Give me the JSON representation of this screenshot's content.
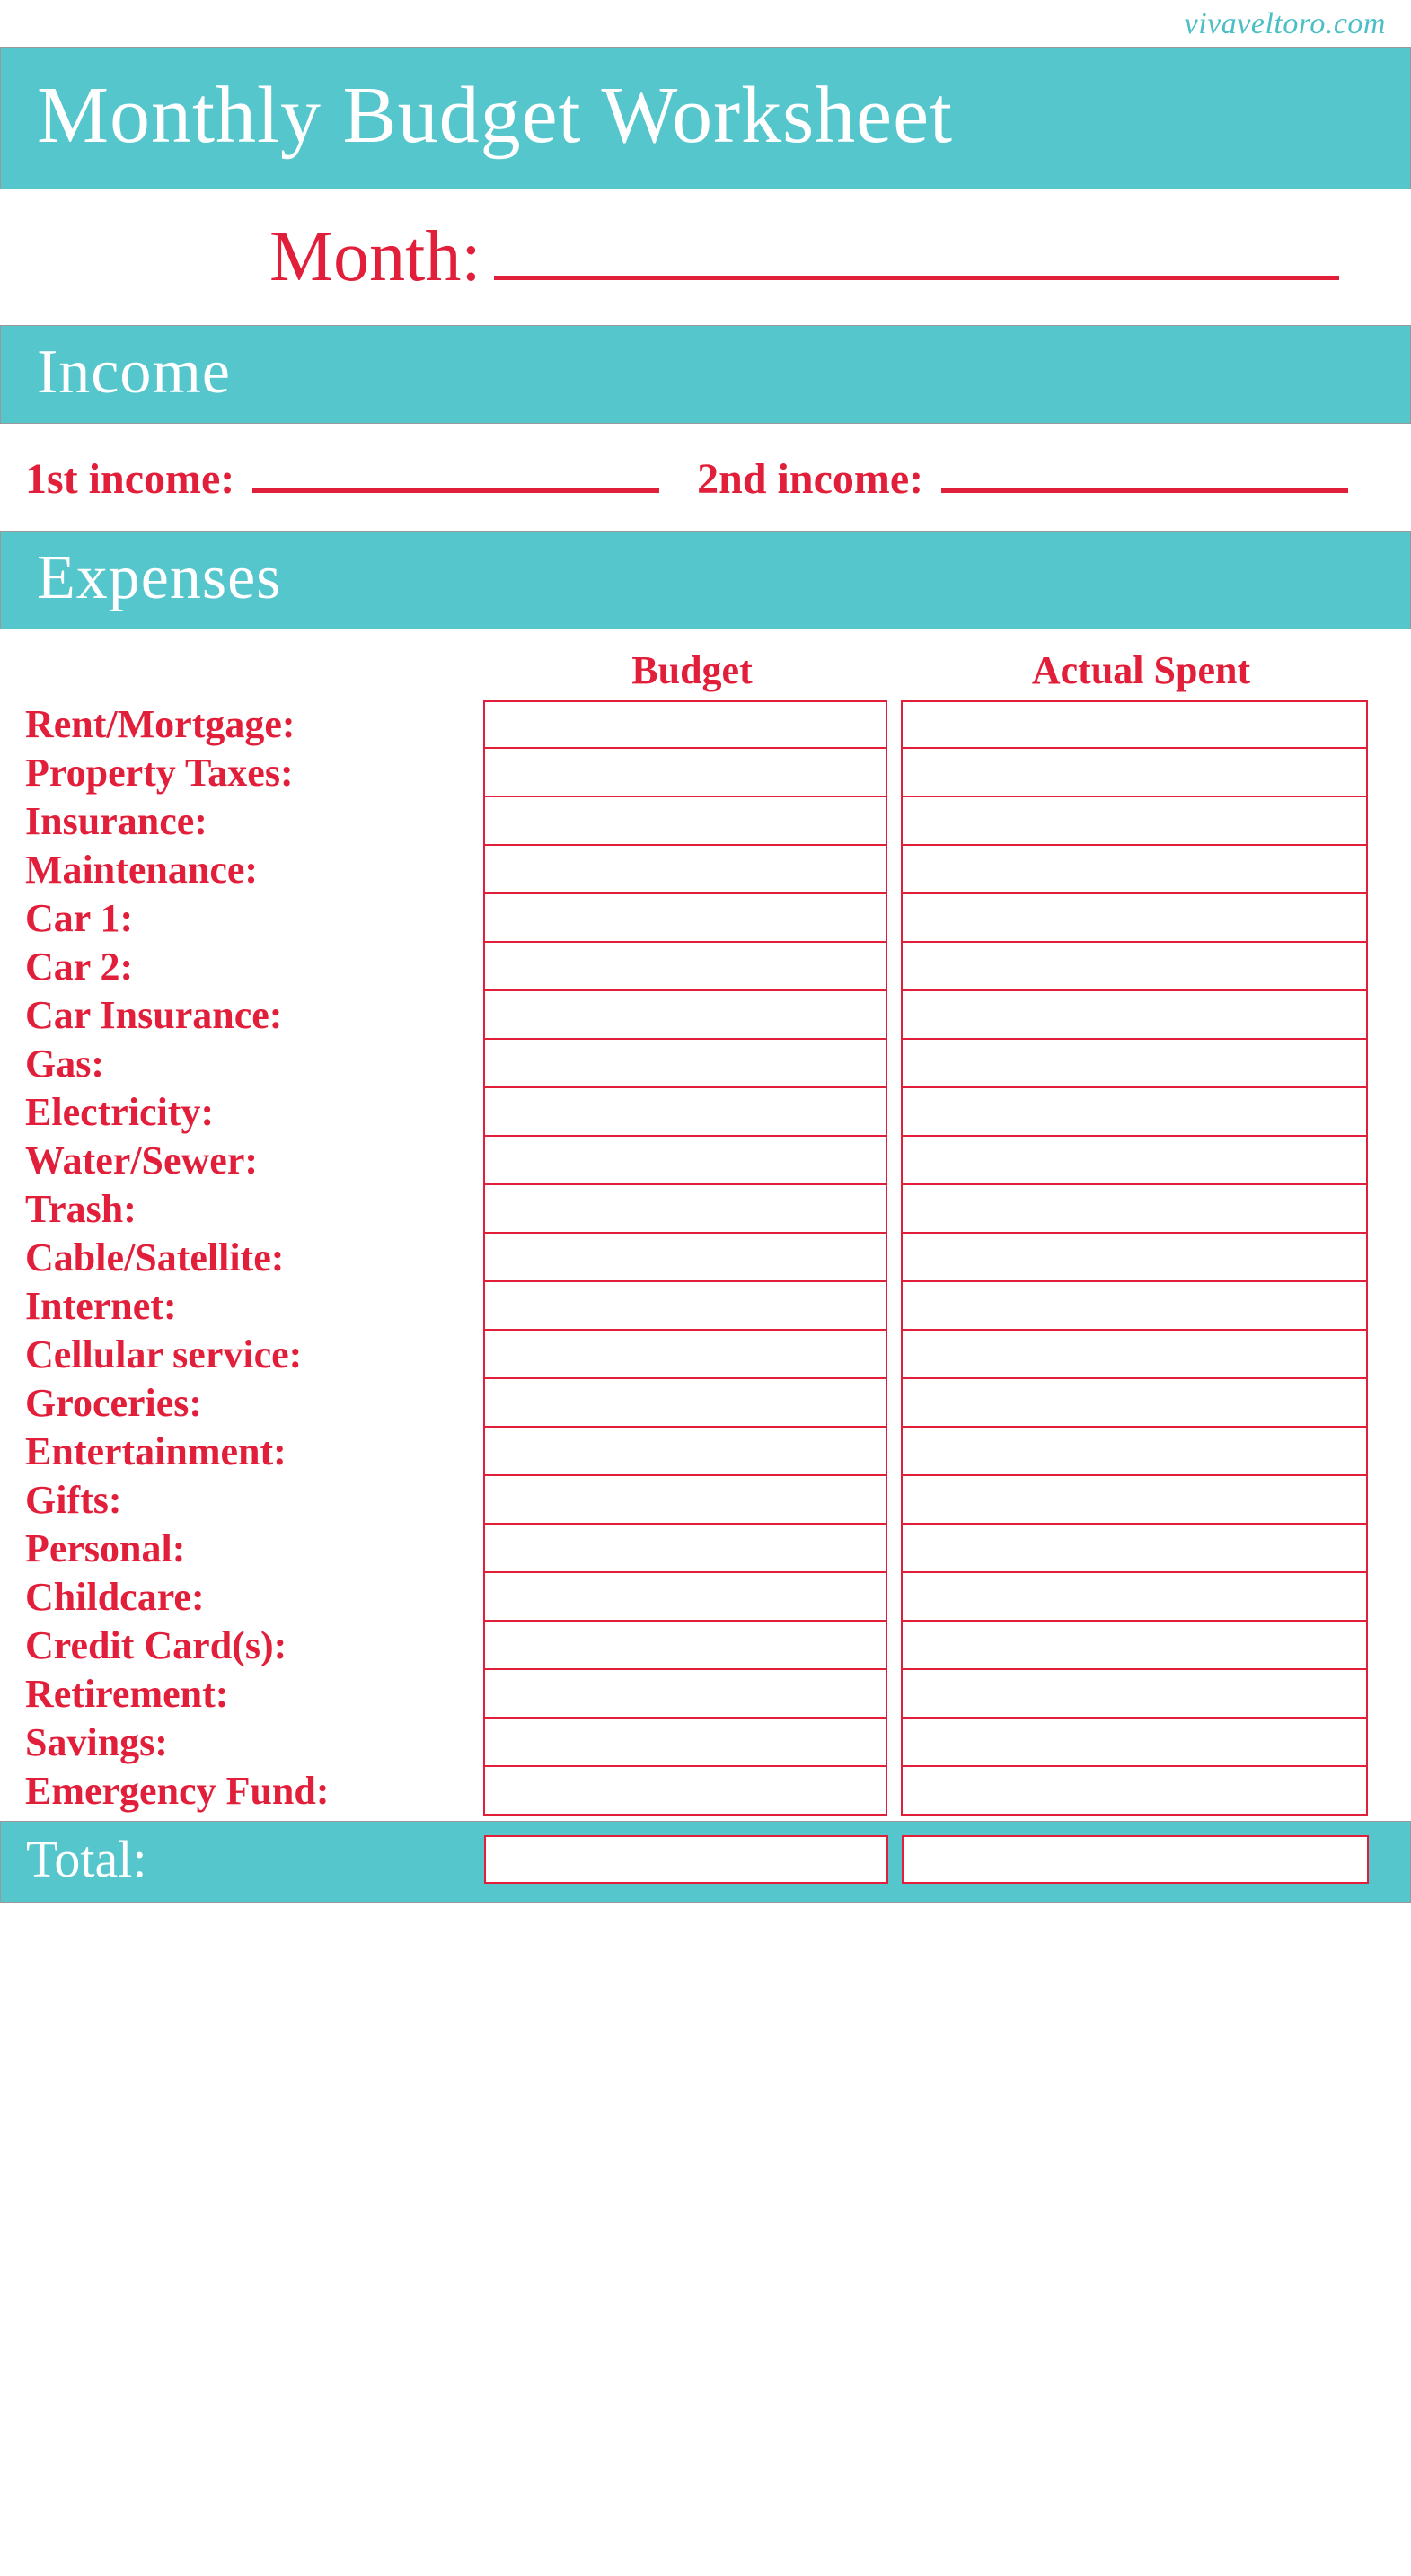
{
  "source_url": "vivaveltoro.com",
  "colors": {
    "teal": "#55c6cc",
    "red": "#e21f3a",
    "white": "#ffffff"
  },
  "title": "Monthly Budget Worksheet",
  "month": {
    "label": "Month:"
  },
  "sections": {
    "income": {
      "heading": "Income",
      "first_label": "1st income:",
      "second_label": "2nd income:"
    },
    "expenses": {
      "heading": "Expenses",
      "column_headers": {
        "budget": "Budget",
        "actual": "Actual Spent"
      },
      "rows": [
        "Rent/Mortgage:",
        "Property Taxes:",
        "Insurance:",
        "Maintenance:",
        "Car 1:",
        "Car 2:",
        "Car Insurance:",
        "Gas:",
        "Electricity:",
        "Water/Sewer:",
        "Trash:",
        "Cable/Satellite:",
        "Internet:",
        "Cellular service:",
        "Groceries:",
        "Entertainment:",
        "Gifts:",
        "Personal:",
        "Childcare:",
        "Credit Card(s):",
        "Retirement:",
        "Savings:",
        "Emergency Fund:"
      ],
      "total_label": "Total:"
    }
  }
}
